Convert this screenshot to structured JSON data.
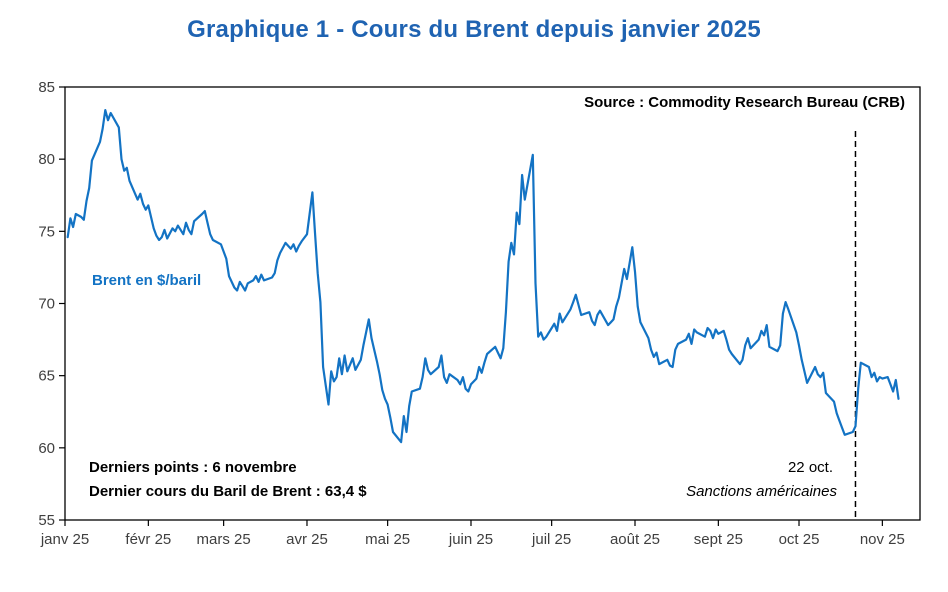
{
  "page": {
    "title": "Graphique 1 - Cours du Brent depuis janvier 2025"
  },
  "annotations": {
    "source": "Source : Commodity Research Bureau (CRB)",
    "series_label": "Brent en $/baril",
    "last_point_line1": "Derniers points : 6 novembre",
    "last_point_line2": "Dernier cours du Baril de Brent : 63,4 $",
    "event_date": "22 oct.",
    "event_label": "Sanctions américaines"
  },
  "colors": {
    "title_blue": "#1F63B2",
    "line_blue": "#1373C4",
    "axis_text": "#3F3F3F",
    "event_line": "#000000"
  },
  "chart_data": {
    "type": "line",
    "title": "Graphique 1 - Cours du Brent depuis janvier 2025",
    "ylabel": "Brent en $/baril",
    "xlabel": "",
    "ylim": [
      55,
      85
    ],
    "yticks": [
      55,
      60,
      65,
      70,
      75,
      80,
      85
    ],
    "grid": false,
    "legend": "none",
    "x_domain_days": [
      0,
      318
    ],
    "x_ticks": [
      {
        "label": "janv 25",
        "day": 0
      },
      {
        "label": "févr 25",
        "day": 31
      },
      {
        "label": "mars 25",
        "day": 59
      },
      {
        "label": "avr 25",
        "day": 90
      },
      {
        "label": "mai 25",
        "day": 120
      },
      {
        "label": "juin 25",
        "day": 151
      },
      {
        "label": "juil 25",
        "day": 181
      },
      {
        "label": "août 25",
        "day": 212
      },
      {
        "label": "sept 25",
        "day": 243
      },
      {
        "label": "oct 25",
        "day": 273
      },
      {
        "label": "nov 25",
        "day": 304
      }
    ],
    "event_line": {
      "day": 294,
      "label": "22 oct.",
      "sublabel": "Sanctions américaines"
    },
    "last_date": "6 novembre",
    "last_value": 63.4,
    "series": [
      {
        "name": "Brent en $/baril",
        "unit": "$/baril",
        "color": "#1373C4",
        "points": [
          [
            1,
            74.6
          ],
          [
            2,
            75.9
          ],
          [
            3,
            75.3
          ],
          [
            4,
            76.2
          ],
          [
            6,
            76.0
          ],
          [
            7,
            75.8
          ],
          [
            8,
            77.1
          ],
          [
            9,
            78.0
          ],
          [
            10,
            79.9
          ],
          [
            13,
            81.2
          ],
          [
            14,
            82.1
          ],
          [
            15,
            83.4
          ],
          [
            16,
            82.7
          ],
          [
            17,
            83.2
          ],
          [
            20,
            82.2
          ],
          [
            21,
            80.0
          ],
          [
            22,
            79.2
          ],
          [
            23,
            79.4
          ],
          [
            24,
            78.5
          ],
          [
            27,
            77.2
          ],
          [
            28,
            77.6
          ],
          [
            29,
            76.9
          ],
          [
            30,
            76.5
          ],
          [
            31,
            76.8
          ],
          [
            33,
            75.2
          ],
          [
            34,
            74.7
          ],
          [
            35,
            74.4
          ],
          [
            36,
            74.6
          ],
          [
            37,
            75.1
          ],
          [
            38,
            74.5
          ],
          [
            40,
            75.2
          ],
          [
            41,
            75.0
          ],
          [
            42,
            75.4
          ],
          [
            44,
            74.8
          ],
          [
            45,
            75.6
          ],
          [
            46,
            75.1
          ],
          [
            47,
            74.8
          ],
          [
            48,
            75.7
          ],
          [
            51,
            76.2
          ],
          [
            52,
            76.4
          ],
          [
            53,
            75.6
          ],
          [
            54,
            74.8
          ],
          [
            55,
            74.4
          ],
          [
            58,
            74.1
          ],
          [
            59,
            73.6
          ],
          [
            60,
            73.1
          ],
          [
            61,
            71.9
          ],
          [
            63,
            71.1
          ],
          [
            64,
            70.9
          ],
          [
            65,
            71.5
          ],
          [
            66,
            71.2
          ],
          [
            67,
            70.9
          ],
          [
            68,
            71.4
          ],
          [
            70,
            71.6
          ],
          [
            71,
            71.9
          ],
          [
            72,
            71.5
          ],
          [
            73,
            72.0
          ],
          [
            74,
            71.6
          ],
          [
            77,
            71.8
          ],
          [
            78,
            72.1
          ],
          [
            79,
            73.0
          ],
          [
            80,
            73.5
          ],
          [
            82,
            74.2
          ],
          [
            84,
            73.8
          ],
          [
            85,
            74.1
          ],
          [
            86,
            73.6
          ],
          [
            87,
            74.0
          ],
          [
            88,
            74.3
          ],
          [
            90,
            74.8
          ],
          [
            92,
            77.7
          ],
          [
            93,
            74.9
          ],
          [
            94,
            72.1
          ],
          [
            95,
            70.1
          ],
          [
            96,
            65.6
          ],
          [
            97,
            64.3
          ],
          [
            98,
            63.0
          ],
          [
            99,
            65.3
          ],
          [
            100,
            64.6
          ],
          [
            101,
            64.9
          ],
          [
            102,
            66.2
          ],
          [
            103,
            65.1
          ],
          [
            104,
            66.4
          ],
          [
            105,
            65.3
          ],
          [
            107,
            66.2
          ],
          [
            108,
            65.4
          ],
          [
            110,
            66.1
          ],
          [
            111,
            67.1
          ],
          [
            112,
            68.0
          ],
          [
            113,
            68.9
          ],
          [
            114,
            67.6
          ],
          [
            115,
            66.8
          ],
          [
            116,
            66.0
          ],
          [
            117,
            65.1
          ],
          [
            118,
            64.0
          ],
          [
            119,
            63.4
          ],
          [
            120,
            63.0
          ],
          [
            121,
            62.1
          ],
          [
            122,
            61.1
          ],
          [
            125,
            60.4
          ],
          [
            126,
            62.2
          ],
          [
            127,
            61.1
          ],
          [
            128,
            62.9
          ],
          [
            129,
            63.9
          ],
          [
            132,
            64.1
          ],
          [
            133,
            64.9
          ],
          [
            134,
            66.2
          ],
          [
            135,
            65.4
          ],
          [
            136,
            65.1
          ],
          [
            139,
            65.6
          ],
          [
            140,
            66.4
          ],
          [
            141,
            64.9
          ],
          [
            142,
            64.5
          ],
          [
            143,
            65.1
          ],
          [
            146,
            64.7
          ],
          [
            147,
            64.4
          ],
          [
            148,
            64.9
          ],
          [
            149,
            64.1
          ],
          [
            150,
            63.9
          ],
          [
            151,
            64.4
          ],
          [
            153,
            64.8
          ],
          [
            154,
            65.6
          ],
          [
            155,
            65.2
          ],
          [
            156,
            65.9
          ],
          [
            157,
            66.5
          ],
          [
            160,
            67.0
          ],
          [
            161,
            66.6
          ],
          [
            162,
            66.2
          ],
          [
            163,
            66.9
          ],
          [
            164,
            69.4
          ],
          [
            165,
            72.9
          ],
          [
            166,
            74.2
          ],
          [
            167,
            73.4
          ],
          [
            168,
            76.3
          ],
          [
            169,
            75.5
          ],
          [
            170,
            78.9
          ],
          [
            171,
            77.2
          ],
          [
            174,
            80.3
          ],
          [
            175,
            71.4
          ],
          [
            176,
            67.7
          ],
          [
            177,
            68.0
          ],
          [
            178,
            67.5
          ],
          [
            179,
            67.7
          ],
          [
            181,
            68.3
          ],
          [
            182,
            68.6
          ],
          [
            183,
            68.1
          ],
          [
            184,
            69.3
          ],
          [
            185,
            68.7
          ],
          [
            188,
            69.6
          ],
          [
            189,
            70.1
          ],
          [
            190,
            70.6
          ],
          [
            191,
            69.9
          ],
          [
            192,
            69.2
          ],
          [
            195,
            69.4
          ],
          [
            196,
            68.8
          ],
          [
            197,
            68.5
          ],
          [
            198,
            69.2
          ],
          [
            199,
            69.5
          ],
          [
            202,
            68.5
          ],
          [
            203,
            68.7
          ],
          [
            204,
            68.9
          ],
          [
            205,
            69.8
          ],
          [
            206,
            70.4
          ],
          [
            208,
            72.4
          ],
          [
            209,
            71.7
          ],
          [
            211,
            73.9
          ],
          [
            212,
            72.2
          ],
          [
            213,
            69.8
          ],
          [
            214,
            68.7
          ],
          [
            217,
            67.6
          ],
          [
            218,
            66.8
          ],
          [
            219,
            66.3
          ],
          [
            220,
            66.6
          ],
          [
            221,
            65.8
          ],
          [
            224,
            66.1
          ],
          [
            225,
            65.7
          ],
          [
            226,
            65.6
          ],
          [
            227,
            66.8
          ],
          [
            228,
            67.2
          ],
          [
            231,
            67.5
          ],
          [
            232,
            67.9
          ],
          [
            233,
            67.2
          ],
          [
            234,
            68.2
          ],
          [
            235,
            68.0
          ],
          [
            238,
            67.7
          ],
          [
            239,
            68.3
          ],
          [
            240,
            68.1
          ],
          [
            241,
            67.6
          ],
          [
            242,
            68.2
          ],
          [
            243,
            67.9
          ],
          [
            245,
            68.1
          ],
          [
            246,
            67.5
          ],
          [
            247,
            66.8
          ],
          [
            248,
            66.5
          ],
          [
            251,
            65.8
          ],
          [
            252,
            66.1
          ],
          [
            253,
            67.1
          ],
          [
            254,
            67.6
          ],
          [
            255,
            66.9
          ],
          [
            258,
            67.5
          ],
          [
            259,
            68.1
          ],
          [
            260,
            67.8
          ],
          [
            261,
            68.5
          ],
          [
            262,
            67.0
          ],
          [
            265,
            66.7
          ],
          [
            266,
            67.1
          ],
          [
            267,
            69.3
          ],
          [
            268,
            70.1
          ],
          [
            269,
            69.6
          ],
          [
            272,
            68.0
          ],
          [
            273,
            67.1
          ],
          [
            274,
            66.1
          ],
          [
            275,
            65.3
          ],
          [
            276,
            64.5
          ],
          [
            279,
            65.6
          ],
          [
            280,
            65.1
          ],
          [
            281,
            64.9
          ],
          [
            282,
            65.2
          ],
          [
            283,
            63.8
          ],
          [
            286,
            63.2
          ],
          [
            287,
            62.4
          ],
          [
            288,
            61.9
          ],
          [
            289,
            61.4
          ],
          [
            290,
            60.9
          ],
          [
            293,
            61.1
          ],
          [
            294,
            61.5
          ],
          [
            295,
            64.1
          ],
          [
            296,
            65.9
          ],
          [
            299,
            65.6
          ],
          [
            300,
            64.9
          ],
          [
            301,
            65.2
          ],
          [
            302,
            64.6
          ],
          [
            303,
            64.9
          ],
          [
            304,
            64.8
          ],
          [
            306,
            64.9
          ],
          [
            307,
            64.4
          ],
          [
            308,
            63.9
          ],
          [
            309,
            64.7
          ],
          [
            310,
            63.4
          ]
        ]
      }
    ]
  }
}
